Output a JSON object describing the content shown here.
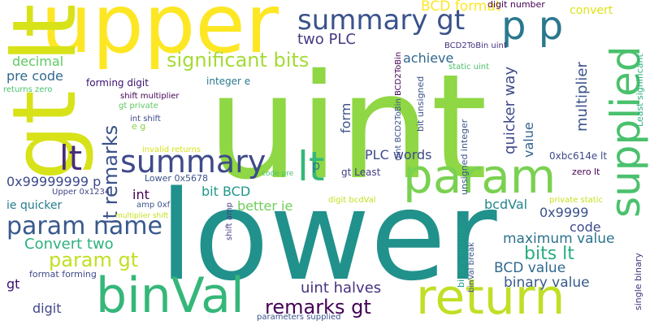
{
  "words": [
    {
      "text": "uint",
      "color": "#8fd744"
    },
    {
      "text": "lower",
      "color": "#21918c"
    },
    {
      "text": "upper",
      "color": "#fde725"
    },
    {
      "text": "gt lt",
      "color": "#d8e219"
    },
    {
      "text": "param",
      "color": "#7ad151"
    },
    {
      "text": "binVal",
      "color": "#35b779"
    },
    {
      "text": "return",
      "color": "#c0df25"
    },
    {
      "text": "supplied",
      "color": "#4ac16d"
    },
    {
      "text": "p p",
      "color": "#2a788e"
    },
    {
      "text": "summary gt",
      "color": "#3b528b"
    },
    {
      "text": "summary",
      "color": "#3e4a89"
    },
    {
      "text": "lt",
      "color": "#35b779"
    },
    {
      "text": "lt",
      "color": "#472d7b"
    },
    {
      "text": "param name",
      "color": "#38598c"
    },
    {
      "text": "significant bits",
      "color": "#a5db36"
    },
    {
      "text": "remarks gt",
      "color": "#440154"
    },
    {
      "text": "lt remarks",
      "color": "#3b528b"
    },
    {
      "text": "param gt",
      "color": "#c2df23"
    },
    {
      "text": "Convert two",
      "color": "#2db27d"
    },
    {
      "text": "uint halves",
      "color": "#46327e"
    },
    {
      "text": "bits lt",
      "color": "#27ad81"
    },
    {
      "text": "maximum value",
      "color": "#2c728e"
    },
    {
      "text": "binary value",
      "color": "#38598c"
    },
    {
      "text": "BCD value",
      "color": "#31688e"
    },
    {
      "text": "quicker way",
      "color": "#3e4989"
    },
    {
      "text": "multiplier",
      "color": "#3b528b"
    },
    {
      "text": "BCD format",
      "color": "#fde725"
    },
    {
      "text": "convert",
      "color": "#dde318"
    },
    {
      "text": "two PLC",
      "color": "#443a83"
    },
    {
      "text": "decimal",
      "color": "#5ec962"
    },
    {
      "text": "pre code",
      "color": "#306a8e"
    },
    {
      "text": "achieve",
      "color": "#31688e"
    },
    {
      "text": "form",
      "color": "#3b528b"
    },
    {
      "text": "value",
      "color": "#33638d"
    },
    {
      "text": "PLC words",
      "color": "#3e4a89"
    },
    {
      "text": "0x99999999 p",
      "color": "#3e4989"
    },
    {
      "text": "ie quicker",
      "color": "#287c8e"
    },
    {
      "text": "bit BCD",
      "color": "#1f988b"
    },
    {
      "text": "better ie",
      "color": "#6ece58"
    },
    {
      "text": "bcdVal",
      "color": "#24868e"
    },
    {
      "text": "0x9999",
      "color": "#3b528b"
    },
    {
      "text": "code",
      "color": "#3e4a89"
    },
    {
      "text": "int",
      "color": "#440154"
    },
    {
      "text": "gt",
      "color": "#3b0f70"
    },
    {
      "text": "digit",
      "color": "#404688"
    },
    {
      "text": "p",
      "color": "#2a788e"
    },
    {
      "text": "gt Least",
      "color": "#433e85"
    },
    {
      "text": "0xbc614e lt",
      "color": "#3e4a89"
    },
    {
      "text": "zero lt",
      "color": "#440154"
    },
    {
      "text": "digit number",
      "color": "#440154"
    },
    {
      "text": "BCD2ToBin uint",
      "color": "#46327e"
    },
    {
      "text": "static uint",
      "color": "#4ac16d"
    },
    {
      "text": "forming digit",
      "color": "#3b0f70"
    },
    {
      "text": "integer e",
      "color": "#2a788e"
    },
    {
      "text": "returns zero",
      "color": "#4ac16d"
    },
    {
      "text": "shift multiplier",
      "color": "#440154"
    },
    {
      "text": "gt private",
      "color": "#5ec962"
    },
    {
      "text": "int shift",
      "color": "#3e4a89"
    },
    {
      "text": "e g",
      "color": "#84d44b"
    },
    {
      "text": "invalid returns",
      "color": "#d8e219"
    },
    {
      "text": "Lower 0x5678",
      "color": "#3b528b"
    },
    {
      "text": "Upper 0x1234",
      "color": "#404688"
    },
    {
      "text": "amp 0xf",
      "color": "#3b528b"
    },
    {
      "text": "multiplier shift",
      "color": "#c8e020"
    },
    {
      "text": "code pre",
      "color": "#4ac16d"
    },
    {
      "text": "digit bcdVal",
      "color": "#c8e020"
    },
    {
      "text": "private static",
      "color": "#c8e020"
    },
    {
      "text": "format forming",
      "color": "#3e4a89"
    },
    {
      "text": "parameters supplied",
      "color": "#3b528b"
    },
    {
      "text": "shift amp",
      "color": "#433e85"
    },
    {
      "text": "BCD2ToBin",
      "color": "#440154"
    },
    {
      "text": "bit unsigned",
      "color": "#3b528b"
    },
    {
      "text": "unsigned integer",
      "color": "#38598c"
    },
    {
      "text": "uint BCD2ToBin",
      "color": "#3b528b"
    },
    {
      "text": "binary integer",
      "color": "#1f9e89"
    },
    {
      "text": "binVal break",
      "color": "#3b528b"
    },
    {
      "text": "Least significant",
      "color": "#2db27d"
    },
    {
      "text": "single binary",
      "color": "#46327e"
    }
  ]
}
